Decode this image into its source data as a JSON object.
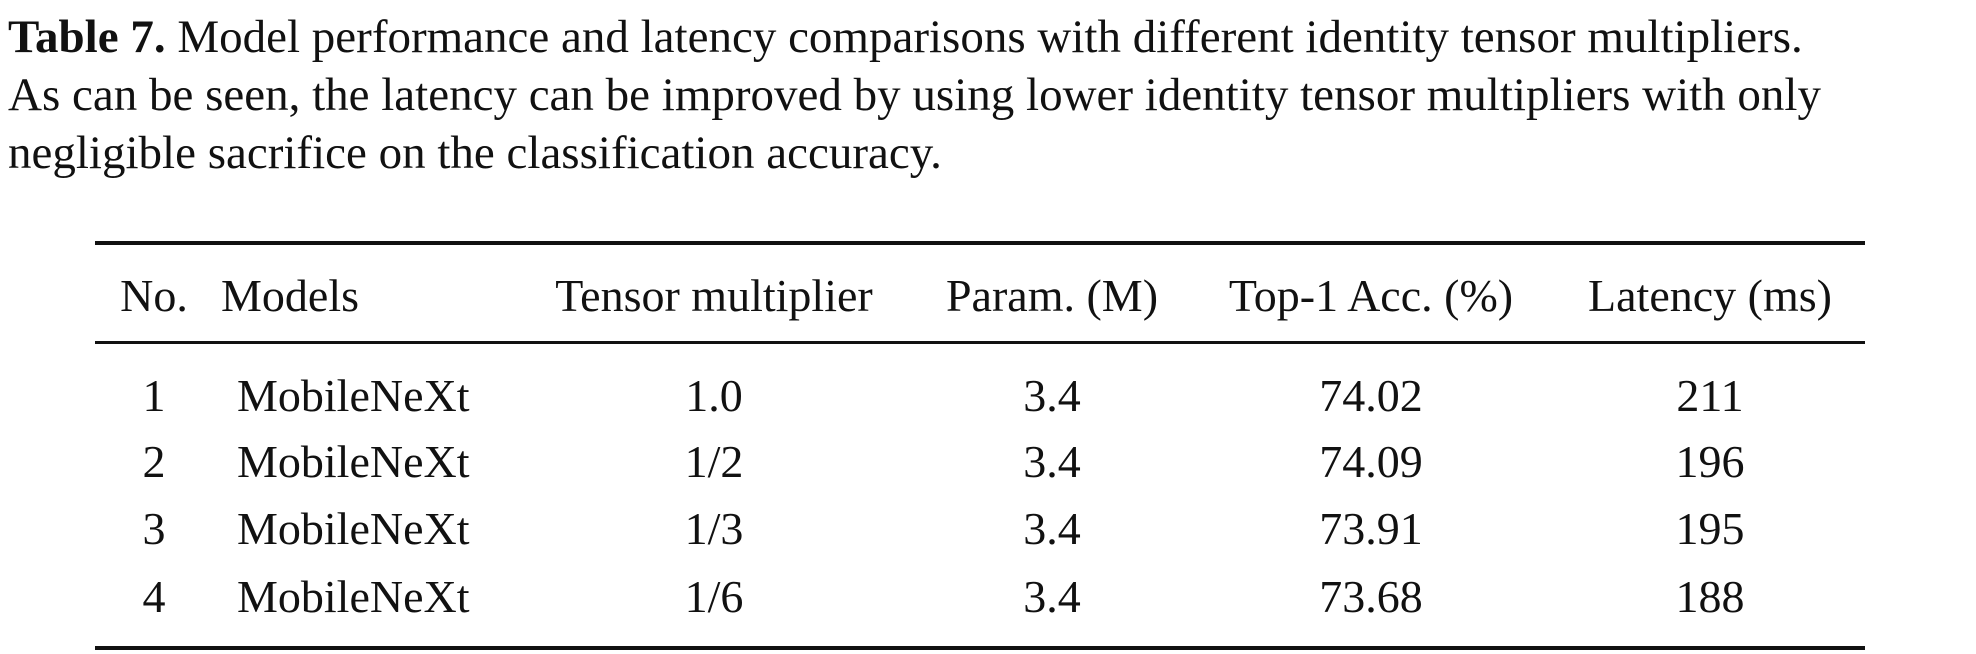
{
  "caption": {
    "label": "Table 7.",
    "lines": [
      "Model performance and latency comparisons with different identity tensor multipliers.",
      "As can be seen, the latency can be improved by using lower identity tensor multipliers with only",
      "negligible sacrifice on the classification accuracy."
    ]
  },
  "table": {
    "header": [
      "No.",
      "Models",
      "Tensor multiplier",
      "Param. (M)",
      "Top-1 Acc. (%)",
      "Latency (ms)"
    ],
    "rows": [
      [
        "1",
        "MobileNeXt",
        "1.0",
        "3.4",
        "74.02",
        "211"
      ],
      [
        "2",
        "MobileNeXt",
        "1/2",
        "3.4",
        "74.09",
        "196"
      ],
      [
        "3",
        "MobileNeXt",
        "1/3",
        "3.4",
        "73.91",
        "195"
      ],
      [
        "4",
        "MobileNeXt",
        "1/6",
        "3.4",
        "73.68",
        "188"
      ]
    ]
  }
}
